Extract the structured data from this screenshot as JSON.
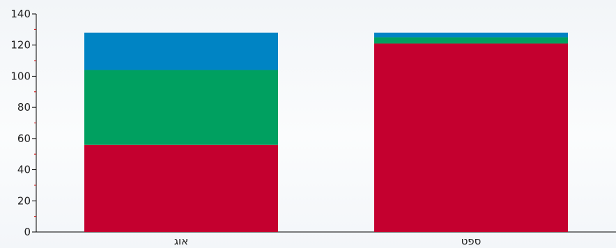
{
  "chart_data": {
    "type": "bar",
    "stacked": true,
    "categories": [
      "אוג",
      "ספט"
    ],
    "series": [
      {
        "color": "#c4002f",
        "values": [
          56,
          121
        ]
      },
      {
        "color": "#00a060",
        "values": [
          48,
          4
        ]
      },
      {
        "color": "#0084c4",
        "values": [
          24,
          3
        ]
      }
    ],
    "ylim": [
      0,
      140
    ],
    "yticks": [
      0,
      20,
      40,
      60,
      80,
      100,
      120,
      140
    ],
    "grid": false,
    "legend": "none",
    "colors": {
      "axis": "#000000",
      "minor_tick": "#cc0000",
      "text": "#222222"
    }
  }
}
